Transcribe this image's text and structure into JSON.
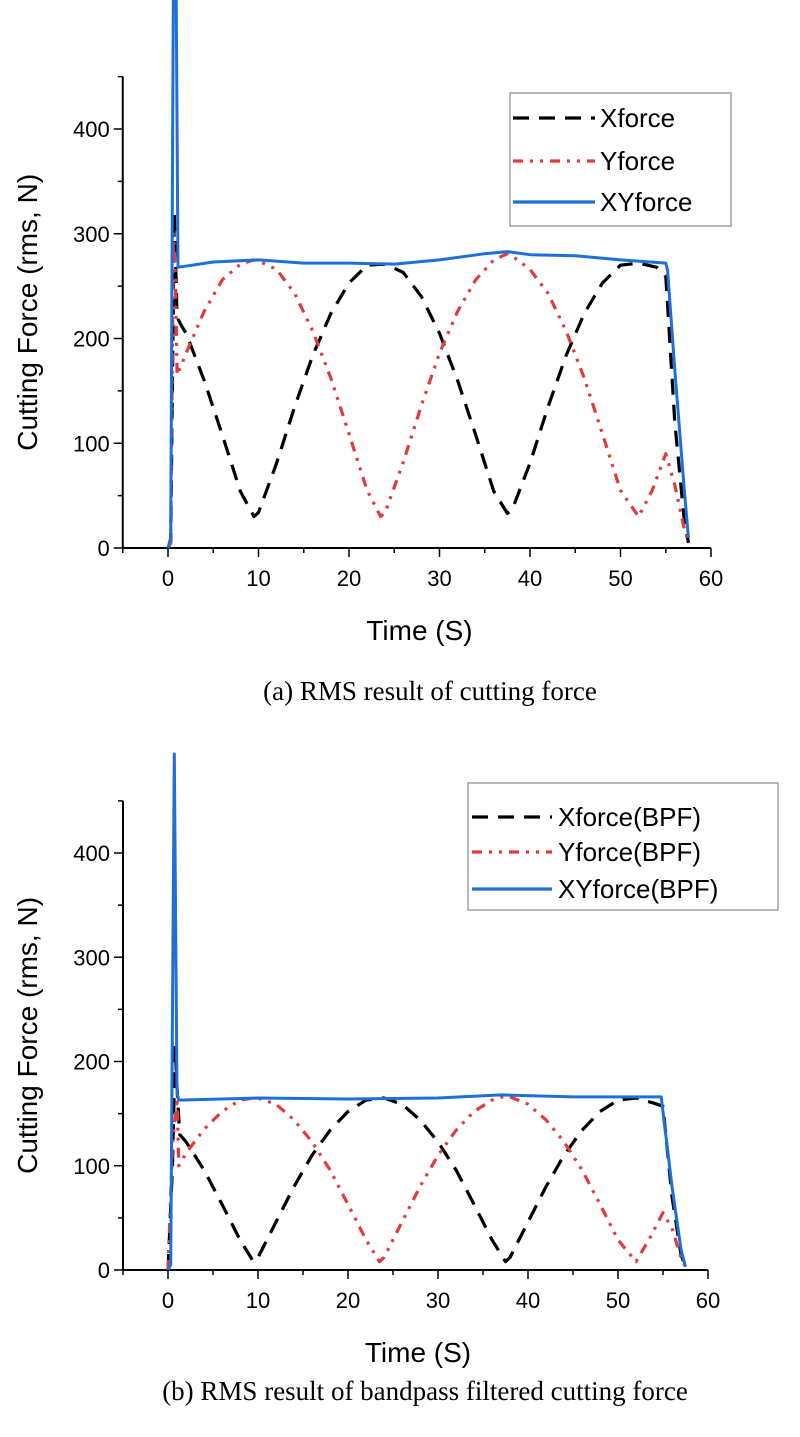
{
  "colors": {
    "xforce": "#000000",
    "yforce": "#e23b3b",
    "xyforce": "#1f6fd8"
  },
  "chart_data": [
    {
      "type": "line",
      "caption": "(a) RMS result of cutting force",
      "xlabel": "Time (S)",
      "ylabel": "Cutting Force (rms, N)",
      "xlim": [
        -5,
        60
      ],
      "ylim": [
        0,
        450
      ],
      "xticks": [
        0,
        10,
        20,
        30,
        40,
        50,
        60
      ],
      "yticks": [
        0,
        100,
        200,
        300,
        400
      ],
      "grid": false,
      "legend_position": "top-right",
      "series": [
        {
          "name": "Xforce",
          "style": "dashed",
          "color": "#000000",
          "x": [
            0,
            0.3,
            0.7,
            1.0,
            1.5,
            2,
            4,
            6,
            8,
            9.5,
            10,
            12,
            14,
            16,
            18,
            20,
            22,
            24,
            26,
            28,
            30,
            32,
            34,
            36,
            37.5,
            38,
            40,
            42,
            44,
            46,
            48,
            50,
            52,
            54,
            55,
            56,
            57,
            57.5
          ],
          "y": [
            0,
            5,
            320,
            220,
            212,
            205,
            160,
            108,
            54,
            30,
            34,
            81,
            135,
            184,
            224,
            253,
            270,
            271,
            263,
            240,
            205,
            160,
            108,
            54,
            33,
            36,
            81,
            135,
            184,
            224,
            253,
            270,
            272,
            268,
            259,
            120,
            30,
            5
          ]
        },
        {
          "name": "Yforce",
          "style": "dash-dot-dot",
          "color": "#e23b3b",
          "x": [
            0,
            0.3,
            0.6,
            0.8,
            1.0,
            2,
            4,
            6,
            8,
            9.5,
            10,
            12,
            14,
            16,
            18,
            20,
            22,
            23.5,
            24,
            26,
            28,
            30,
            32,
            34,
            36,
            37.5,
            38,
            40,
            42,
            44,
            46,
            48,
            50,
            52,
            53.5,
            55,
            56,
            57,
            57.5
          ],
          "y": [
            0,
            5,
            300,
            270,
            165,
            186,
            226,
            256,
            271,
            275,
            274,
            266,
            243,
            207,
            162,
            109,
            55,
            30,
            34,
            82,
            136,
            186,
            226,
            256,
            275,
            281,
            279,
            266,
            243,
            207,
            162,
            109,
            55,
            30,
            55,
            90,
            60,
            20,
            5
          ]
        },
        {
          "name": "XYforce",
          "style": "solid",
          "color": "#1f6fd8",
          "x": [
            0,
            0.3,
            0.6,
            0.9,
            1.1,
            5,
            10,
            15,
            20,
            25,
            30,
            35,
            37.5,
            40,
            45,
            50,
            55,
            55.2,
            56,
            57,
            57.5
          ],
          "y": [
            0,
            10,
            540,
            540,
            268,
            273,
            275,
            272,
            272,
            271,
            275,
            281,
            283,
            280,
            279,
            275,
            272,
            265,
            170,
            60,
            10
          ]
        }
      ]
    },
    {
      "type": "line",
      "caption": "(b) RMS result of bandpass filtered cutting force",
      "xlabel": "Time (S)",
      "ylabel": "Cutting Force (rms, N)",
      "xlim": [
        -5,
        60
      ],
      "ylim": [
        0,
        450
      ],
      "xticks": [
        0,
        10,
        20,
        30,
        40,
        50,
        60
      ],
      "yticks": [
        0,
        100,
        200,
        300,
        400
      ],
      "grid": false,
      "legend_position": "top-right",
      "series": [
        {
          "name": "Xforce(BPF)",
          "style": "dashed",
          "color": "#000000",
          "x": [
            0,
            0.5,
            0.8,
            1.0,
            1.3,
            2,
            4,
            6,
            8,
            9.5,
            10,
            12,
            14,
            16,
            18,
            20,
            22,
            24,
            26,
            28,
            30,
            32,
            34,
            36,
            37.5,
            38,
            40,
            42,
            44,
            46,
            48,
            50,
            52,
            54,
            55,
            56,
            57,
            57.5
          ],
          "y": [
            0,
            100,
            215,
            175,
            130,
            123,
            96,
            63,
            29,
            8,
            12,
            46,
            80,
            110,
            134,
            152,
            163,
            165,
            159,
            144,
            123,
            96,
            63,
            29,
            8,
            12,
            46,
            80,
            110,
            134,
            152,
            163,
            165,
            160,
            157,
            70,
            15,
            3
          ]
        },
        {
          "name": "Yforce(BPF)",
          "style": "dash-dot-dot",
          "color": "#e23b3b",
          "x": [
            0,
            0.5,
            1.0,
            1.2,
            2,
            4,
            6,
            8,
            9.5,
            10,
            12,
            14,
            16,
            18,
            20,
            22,
            23.5,
            24,
            26,
            28,
            30,
            32,
            34,
            36,
            37.5,
            38,
            40,
            42,
            44,
            46,
            48,
            50,
            52,
            53.5,
            55,
            56,
            57,
            57.5
          ],
          "y": [
            0,
            120,
            165,
            100,
            112,
            135,
            152,
            163,
            165,
            165,
            159,
            144,
            123,
            96,
            63,
            29,
            8,
            12,
            46,
            80,
            110,
            134,
            152,
            163,
            167,
            166,
            159,
            144,
            123,
            96,
            63,
            29,
            8,
            30,
            55,
            40,
            12,
            3
          ]
        },
        {
          "name": "XYforce(BPF)",
          "style": "solid",
          "color": "#1f6fd8",
          "x": [
            0,
            0.3,
            0.7,
            1.0,
            1.2,
            10,
            20,
            30,
            37,
            45,
            54.8,
            56,
            57,
            57.5
          ],
          "y": [
            0,
            5,
            495,
            170,
            163,
            165,
            164,
            165,
            168,
            166,
            166,
            80,
            20,
            3
          ]
        }
      ]
    }
  ]
}
